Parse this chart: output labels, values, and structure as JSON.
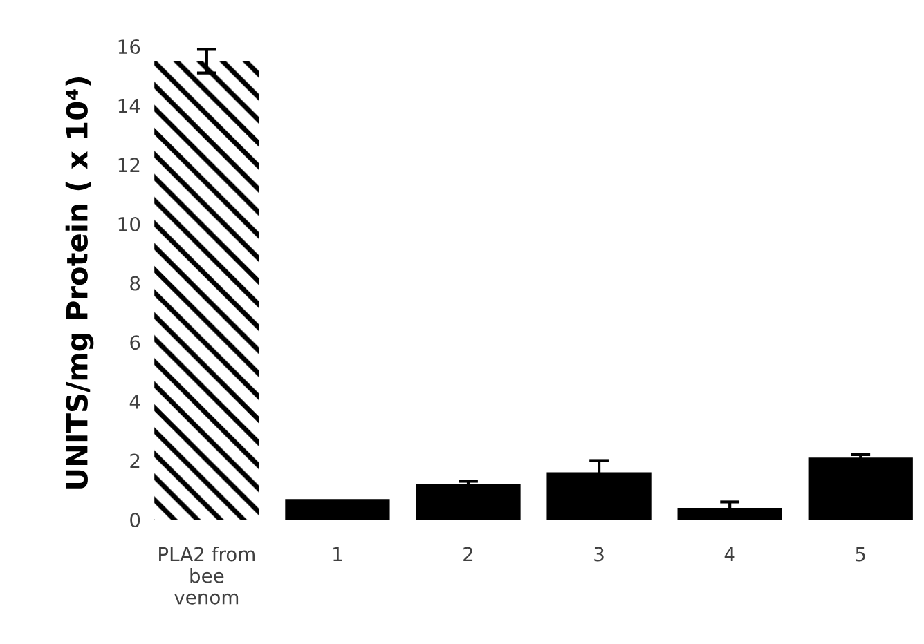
{
  "chart_data": {
    "type": "bar",
    "ylabel": "UNITS/mg Protein ( x 10⁴)",
    "categories": [
      "PLA2 from\nbee\nvenom",
      "1",
      "2",
      "3",
      "4",
      "5"
    ],
    "values": [
      15.5,
      0.7,
      1.2,
      1.6,
      0.4,
      2.1
    ],
    "errors": [
      0.4,
      null,
      0.1,
      0.4,
      0.2,
      0.1
    ],
    "colors": [
      "#ffffff",
      "#000000",
      "#000000",
      "#000000",
      "#000000",
      "#000000"
    ],
    "ylim": [
      0,
      16
    ],
    "yticks": [
      0,
      2,
      4,
      6,
      8,
      10,
      12,
      14,
      16
    ],
    "grid": false,
    "legend": false
  }
}
